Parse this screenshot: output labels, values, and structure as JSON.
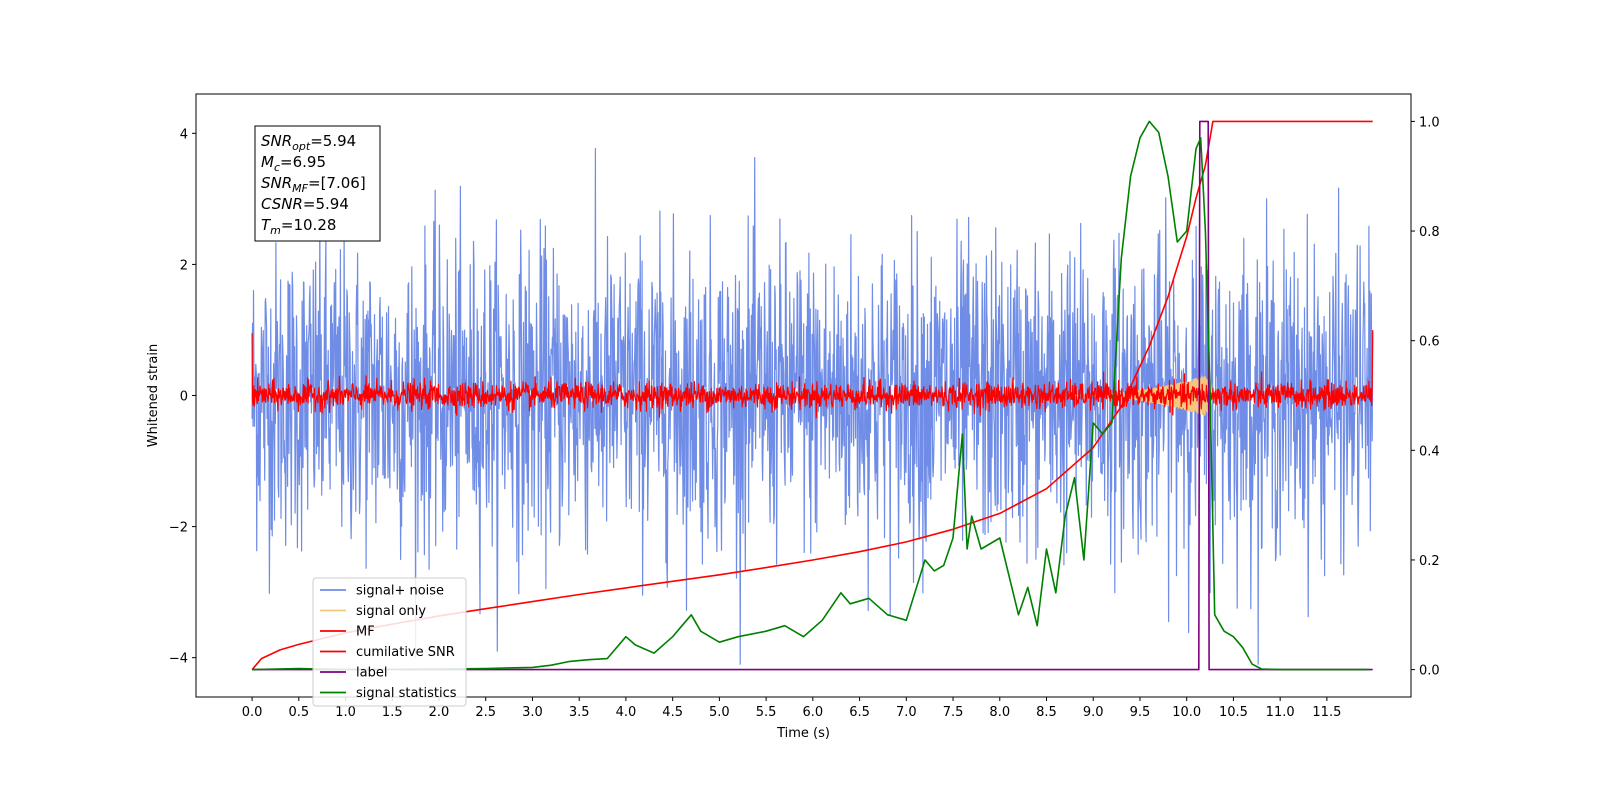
{
  "chart_data": {
    "type": "line",
    "title": "",
    "xlabel": "Time (s)",
    "ylabel_left": "Whitened strain",
    "ylabel_right": "",
    "xlim": [
      -0.6,
      12.4
    ],
    "ylim_left": [
      -4.6,
      4.6
    ],
    "ylim_right": [
      -0.05,
      1.05
    ],
    "x_ticks": [
      0.0,
      0.5,
      1.0,
      1.5,
      2.0,
      2.5,
      3.0,
      3.5,
      4.0,
      4.5,
      5.0,
      5.5,
      6.0,
      6.5,
      7.0,
      7.5,
      8.0,
      8.5,
      9.0,
      9.5,
      10.0,
      10.5,
      11.0,
      11.5
    ],
    "x_tick_labels": [
      "0.0",
      "0.5",
      "1.0",
      "1.5",
      "2.0",
      "2.5",
      "3.0",
      "3.5",
      "4.0",
      "4.5",
      "5.0",
      "5.5",
      "6.0",
      "6.5",
      "7.0",
      "7.5",
      "8.0",
      "8.5",
      "9.0",
      "9.5",
      "10.0",
      "10.5",
      "11.0",
      "11.5"
    ],
    "y_left_ticks": [
      -4,
      -2,
      0,
      2,
      4
    ],
    "y_left_tick_labels": [
      "−4",
      "−2",
      "0",
      "2",
      "4"
    ],
    "y_right_ticks": [
      0.0,
      0.2,
      0.4,
      0.6,
      0.8,
      1.0
    ],
    "y_right_tick_labels": [
      "0.0",
      "0.2",
      "0.4",
      "0.6",
      "0.8",
      "1.0"
    ],
    "legend_position": "lower-left",
    "annotation": [
      {
        "base": "SNR",
        "sub": "opt",
        "value": "=5.94"
      },
      {
        "base": "M",
        "sub": "c",
        "value": "=6.95"
      },
      {
        "base": "SNR",
        "sub": "MF",
        "value": "=[7.06]"
      },
      {
        "base": "CSNR",
        "sub": "",
        "value": "=5.94"
      },
      {
        "base": "T",
        "sub": "m",
        "value": "=10.28"
      }
    ],
    "series": [
      {
        "name": "signal+ noise",
        "color": "#6f8de6",
        "axis": "left",
        "kind": "noise",
        "x_range": [
          0.0,
          11.99
        ],
        "samples": 2400,
        "typical_band": [
          -2.3,
          2.3
        ],
        "extreme_range": [
          -4.1,
          4.2
        ]
      },
      {
        "name": "signal only",
        "color": "#f5c77e",
        "axis": "left",
        "kind": "chirp",
        "x_range": [
          8.8,
          10.3
        ],
        "peak_amplitude": 0.3,
        "peak_x": 10.2
      },
      {
        "name": "MF",
        "color": "#ff0000",
        "axis": "left",
        "kind": "noise",
        "x_range": [
          0.0,
          11.99
        ],
        "samples": 2400,
        "typical_band": [
          -0.2,
          0.2
        ],
        "edge_values": [
          0.95,
          1.0
        ]
      },
      {
        "name": "cumilative SNR",
        "color": "#ff0000",
        "axis": "right",
        "kind": "line",
        "x": [
          0.0,
          0.1,
          0.3,
          0.5,
          1.0,
          1.5,
          2.0,
          2.5,
          3.0,
          3.5,
          4.0,
          4.5,
          5.0,
          5.5,
          6.0,
          6.5,
          7.0,
          7.5,
          8.0,
          8.5,
          9.0,
          9.3,
          9.6,
          9.8,
          10.0,
          10.1,
          10.2,
          10.28,
          10.3,
          11.0,
          11.5,
          11.99
        ],
        "y": [
          0.0,
          0.02,
          0.036,
          0.046,
          0.067,
          0.083,
          0.098,
          0.111,
          0.124,
          0.137,
          0.149,
          0.161,
          0.173,
          0.186,
          0.2,
          0.215,
          0.233,
          0.256,
          0.285,
          0.33,
          0.405,
          0.48,
          0.59,
          0.68,
          0.79,
          0.86,
          0.92,
          1.0,
          1.0,
          1.0,
          1.0,
          1.0
        ]
      },
      {
        "name": "label",
        "color": "#800080",
        "axis": "right",
        "kind": "line",
        "x": [
          0.0,
          10.13,
          10.14,
          10.23,
          10.24,
          11.99
        ],
        "y": [
          0.0,
          0.0,
          1.0,
          1.0,
          0.0,
          0.0
        ]
      },
      {
        "name": "signal statistics",
        "color": "#008000",
        "axis": "right",
        "kind": "line",
        "x": [
          0.0,
          0.5,
          1.0,
          2.0,
          2.5,
          3.0,
          3.2,
          3.4,
          3.6,
          3.8,
          4.0,
          4.1,
          4.3,
          4.5,
          4.6,
          4.7,
          4.8,
          5.0,
          5.2,
          5.5,
          5.7,
          5.9,
          6.1,
          6.3,
          6.4,
          6.6,
          6.8,
          7.0,
          7.2,
          7.3,
          7.4,
          7.5,
          7.6,
          7.65,
          7.7,
          7.8,
          8.0,
          8.2,
          8.3,
          8.4,
          8.5,
          8.6,
          8.7,
          8.8,
          8.9,
          9.0,
          9.1,
          9.2,
          9.3,
          9.4,
          9.5,
          9.6,
          9.7,
          9.8,
          9.9,
          10.0,
          10.1,
          10.15,
          10.2,
          10.25,
          10.3,
          10.4,
          10.5,
          10.6,
          10.7,
          10.8,
          11.0,
          11.5,
          11.95
        ],
        "y": [
          0.0,
          0.002,
          0.0,
          0.001,
          0.002,
          0.004,
          0.008,
          0.015,
          0.018,
          0.02,
          0.06,
          0.045,
          0.03,
          0.06,
          0.08,
          0.1,
          0.07,
          0.05,
          0.06,
          0.07,
          0.08,
          0.06,
          0.09,
          0.14,
          0.12,
          0.13,
          0.1,
          0.09,
          0.2,
          0.18,
          0.19,
          0.24,
          0.43,
          0.22,
          0.28,
          0.22,
          0.24,
          0.1,
          0.15,
          0.08,
          0.22,
          0.14,
          0.28,
          0.35,
          0.2,
          0.45,
          0.43,
          0.45,
          0.75,
          0.9,
          0.97,
          1.0,
          0.98,
          0.9,
          0.78,
          0.8,
          0.95,
          0.97,
          0.8,
          0.5,
          0.1,
          0.07,
          0.06,
          0.04,
          0.01,
          0.001,
          0.0,
          0.0,
          0.0
        ]
      }
    ]
  }
}
